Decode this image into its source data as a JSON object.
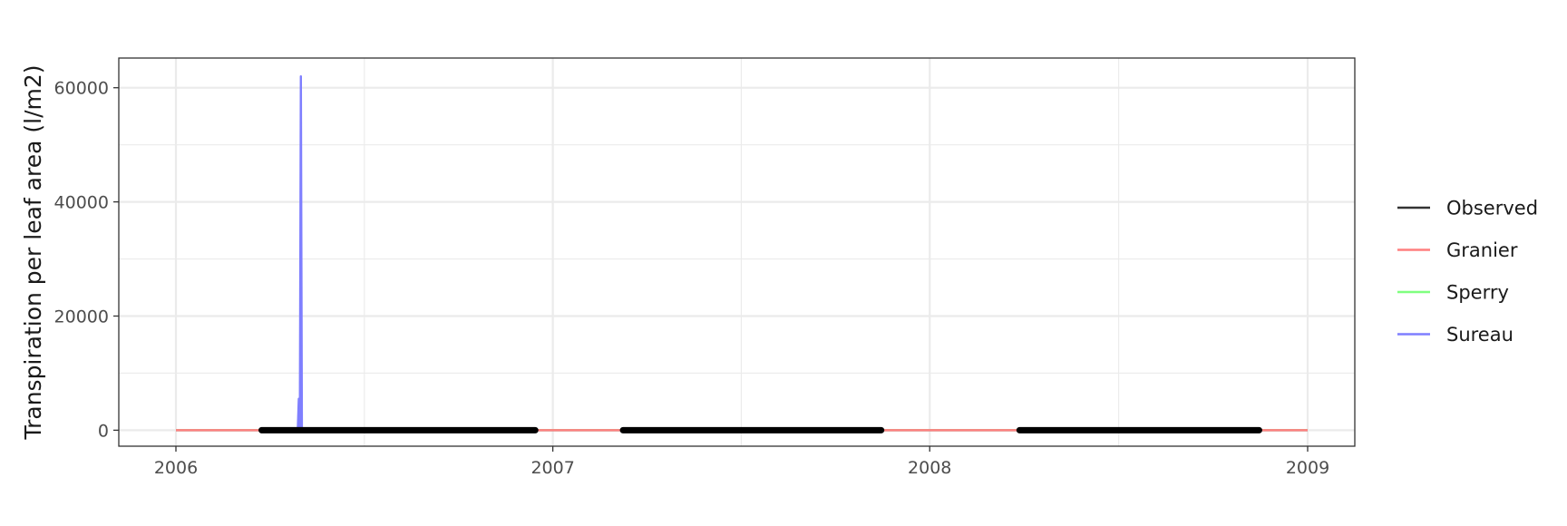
{
  "chart_data": {
    "type": "line",
    "title": "",
    "xlabel": "",
    "ylabel": "Transpiration per leaf area (l/m2)",
    "x_range": [
      "2006-01-01",
      "2009-01-01"
    ],
    "ylim": [
      -2800,
      65200
    ],
    "x_ticks": [
      {
        "date": "2006-01-01",
        "label": "2006"
      },
      {
        "date": "2007-01-01",
        "label": "2007"
      },
      {
        "date": "2008-01-01",
        "label": "2008"
      },
      {
        "date": "2009-01-01",
        "label": "2009"
      }
    ],
    "y_ticks": [
      {
        "value": 0,
        "label": "0"
      },
      {
        "value": 20000,
        "label": "20000"
      },
      {
        "value": 40000,
        "label": "40000"
      },
      {
        "value": 60000,
        "label": "60000"
      }
    ],
    "grid": true,
    "legend_position": "right",
    "series": [
      {
        "name": "Observed",
        "color": "#000000",
        "legend_color": "#333333",
        "style": "thick",
        "segments": [
          [
            {
              "x": "2006-03-25",
              "y": 0
            },
            {
              "x": "2006-12-15",
              "y": 0
            }
          ],
          [
            {
              "x": "2007-03-10",
              "y": 0
            },
            {
              "x": "2007-11-15",
              "y": 0
            }
          ],
          [
            {
              "x": "2008-03-28",
              "y": 0
            },
            {
              "x": "2008-11-15",
              "y": 0
            }
          ]
        ]
      },
      {
        "name": "Granier",
        "color": "#ff7f7f",
        "style": "thin",
        "segments": [
          [
            {
              "x": "2006-01-01",
              "y": 0
            },
            {
              "x": "2009-01-01",
              "y": 0
            }
          ]
        ]
      },
      {
        "name": "Sperry",
        "color": "#7fff7f",
        "style": "thin",
        "segments": [
          [
            {
              "x": "2006-01-01",
              "y": 0
            },
            {
              "x": "2009-01-01",
              "y": 0
            }
          ]
        ]
      },
      {
        "name": "Sureau",
        "color": "#7f7fff",
        "style": "thin",
        "segments": [
          [
            {
              "x": "2006-01-01",
              "y": 0
            },
            {
              "x": "2006-04-29",
              "y": 0
            },
            {
              "x": "2006-04-30",
              "y": 5500
            },
            {
              "x": "2006-05-01",
              "y": 5500
            },
            {
              "x": "2006-05-01",
              "y": 0
            },
            {
              "x": "2006-05-02",
              "y": 62000
            },
            {
              "x": "2006-05-03",
              "y": 0
            },
            {
              "x": "2009-01-01",
              "y": 0
            }
          ]
        ]
      }
    ]
  }
}
